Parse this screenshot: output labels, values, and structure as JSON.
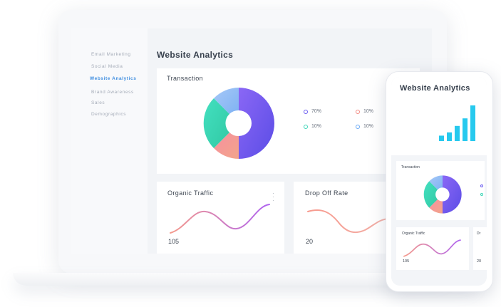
{
  "desktop": {
    "sidebar": {
      "items": [
        {
          "label": "Email Marketing"
        },
        {
          "label": "Social Media"
        },
        {
          "label": "Website Analytics"
        },
        {
          "label": "Brand Awareness"
        },
        {
          "label": "Sales"
        },
        {
          "label": "Demographics"
        }
      ],
      "active_index": 2
    },
    "page_title": "Website Analytics",
    "transaction_card": {
      "title": "Transaction",
      "legend": [
        {
          "label": "70%",
          "color": "#6a5cf0"
        },
        {
          "label": "10%",
          "color": "#f28b82"
        },
        {
          "label": "10%",
          "color": "#3ed6b8"
        },
        {
          "label": "10%",
          "color": "#6aa9f5"
        }
      ]
    },
    "organic_card": {
      "title": "Organic Traffic",
      "value": "105"
    },
    "dropoff_card": {
      "title": "Drop Off Rate",
      "value": "20"
    }
  },
  "mobile": {
    "page_title": "Website Analytics",
    "transaction_title": "Transaction",
    "organic_title": "Organic Traffic",
    "organic_value": "105",
    "dropoff_title": "Dr",
    "dropoff_value": "20",
    "bar_chart": {
      "values": [
        1,
        1.6,
        2.8,
        4.2,
        6.6
      ]
    }
  },
  "colors": {
    "purple": "#6a5cf0",
    "coral": "#f28b82",
    "teal": "#3ed6b8",
    "sky": "#7fb8f5",
    "bar": "#27c9ee",
    "active_nav": "#3f8ee0"
  }
}
